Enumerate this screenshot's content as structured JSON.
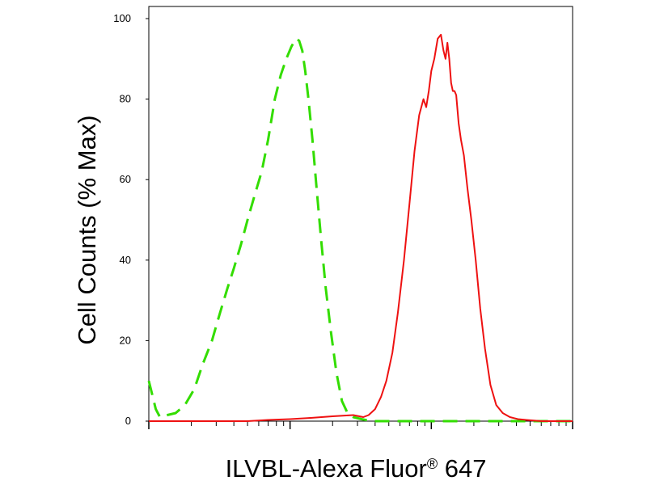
{
  "chart_data": {
    "type": "line",
    "xlabel": "ILVBL-Alexa Fluor",
    "xlabel_superscript": "®",
    "xlabel_suffix": " 647",
    "ylabel": "Cell Counts (% Max)",
    "x_scale": "log",
    "xlim": [
      1,
      1000
    ],
    "ylim": [
      0,
      100
    ],
    "y_ticks": [
      0,
      20,
      40,
      60,
      80,
      100
    ],
    "grid": false,
    "series": [
      {
        "style": "dashed",
        "color": "#33dd00",
        "x": [
          1.0,
          1.05,
          1.12,
          1.2,
          1.35,
          1.55,
          1.8,
          2.1,
          2.4,
          2.8,
          3.2,
          3.6,
          4.0,
          4.5,
          5.0,
          5.6,
          6.3,
          7.0,
          7.8,
          8.6,
          9.4,
          10.2,
          11.0,
          11.6,
          12.2,
          12.8,
          13.5,
          14.4,
          15.4,
          16.6,
          17.9,
          19.5,
          21.3,
          23.3,
          25.5,
          28.0,
          32.0,
          38.0,
          50.0,
          100.0,
          300.0,
          1000.0
        ],
        "y": [
          10,
          7,
          3,
          1,
          1.5,
          2,
          4,
          8,
          14,
          20,
          27,
          33,
          38,
          44,
          50,
          56,
          62,
          70,
          80,
          86,
          90,
          93,
          95,
          94.5,
          92,
          87,
          80,
          70,
          58,
          45,
          33,
          22,
          12,
          5,
          2,
          1,
          0.5,
          0,
          0,
          0,
          0,
          0
        ]
      },
      {
        "style": "solid",
        "color": "#ee1111",
        "x": [
          1.0,
          3.0,
          5.0,
          7.0,
          10.0,
          14.0,
          20.0,
          28.0,
          33.0,
          36.0,
          40.0,
          44.0,
          48.0,
          53.0,
          58.0,
          64.0,
          70.0,
          76.0,
          82.0,
          88.0,
          92.0,
          96.0,
          100.0,
          105.0,
          111.0,
          117.0,
          122.0,
          126.0,
          130.0,
          134.0,
          138.0,
          142.0,
          146.0,
          150.0,
          156.0,
          162.0,
          170.0,
          180.0,
          192.0,
          206.0,
          222.0,
          240.0,
          262.0,
          288.0,
          320.0,
          360.0,
          410.0,
          470.0,
          600.0,
          800.0,
          1000.0
        ],
        "y": [
          0,
          0,
          0,
          0.3,
          0.5,
          0.8,
          1.2,
          1.5,
          1,
          1.5,
          3,
          6,
          10,
          17,
          27,
          40,
          54,
          67,
          76,
          80,
          78,
          82,
          87,
          90,
          95,
          96,
          92,
          90,
          94,
          90,
          84,
          82,
          82,
          81,
          74,
          70,
          66,
          58,
          50,
          40,
          28,
          18,
          9,
          4,
          2,
          1,
          0.5,
          0.3,
          0,
          0,
          0
        ]
      }
    ]
  }
}
